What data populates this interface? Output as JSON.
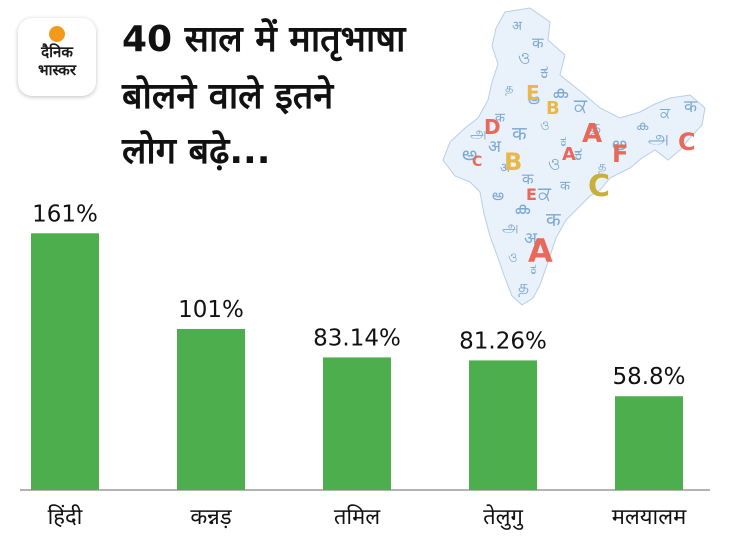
{
  "header": {
    "logo_line1": "दैनिक",
    "logo_line2": "भास्कर",
    "title_line1": "40 साल में मातृभाषा",
    "title_line2": "बोलने वाले इतने",
    "title_line3": "लोग बढ़े..."
  },
  "map_letters": [
    "A",
    "B",
    "C",
    "D",
    "E",
    "F",
    "A",
    "C",
    "E",
    "B",
    "A",
    "C"
  ],
  "colors": {
    "bar": "#4cae4c",
    "baseline": "#9a9a9a",
    "map_glyphs": "#6a9ccc",
    "map_fill": "#e9f1fa"
  },
  "chart_data": {
    "type": "bar",
    "title": "40 साल में मातृभाषा बोलने वाले इतने लोग बढ़े...",
    "categories": [
      "हिंदी",
      "कन्नड़",
      "तमिल",
      "तेलुगु",
      "मलयालम"
    ],
    "values": [
      161,
      101,
      83.14,
      81.26,
      58.8
    ],
    "value_labels": [
      "161%",
      "101%",
      "83.14%",
      "81.26%",
      "58.8%"
    ],
    "unit": "%",
    "ylim": [
      0,
      185
    ],
    "grid": false
  }
}
